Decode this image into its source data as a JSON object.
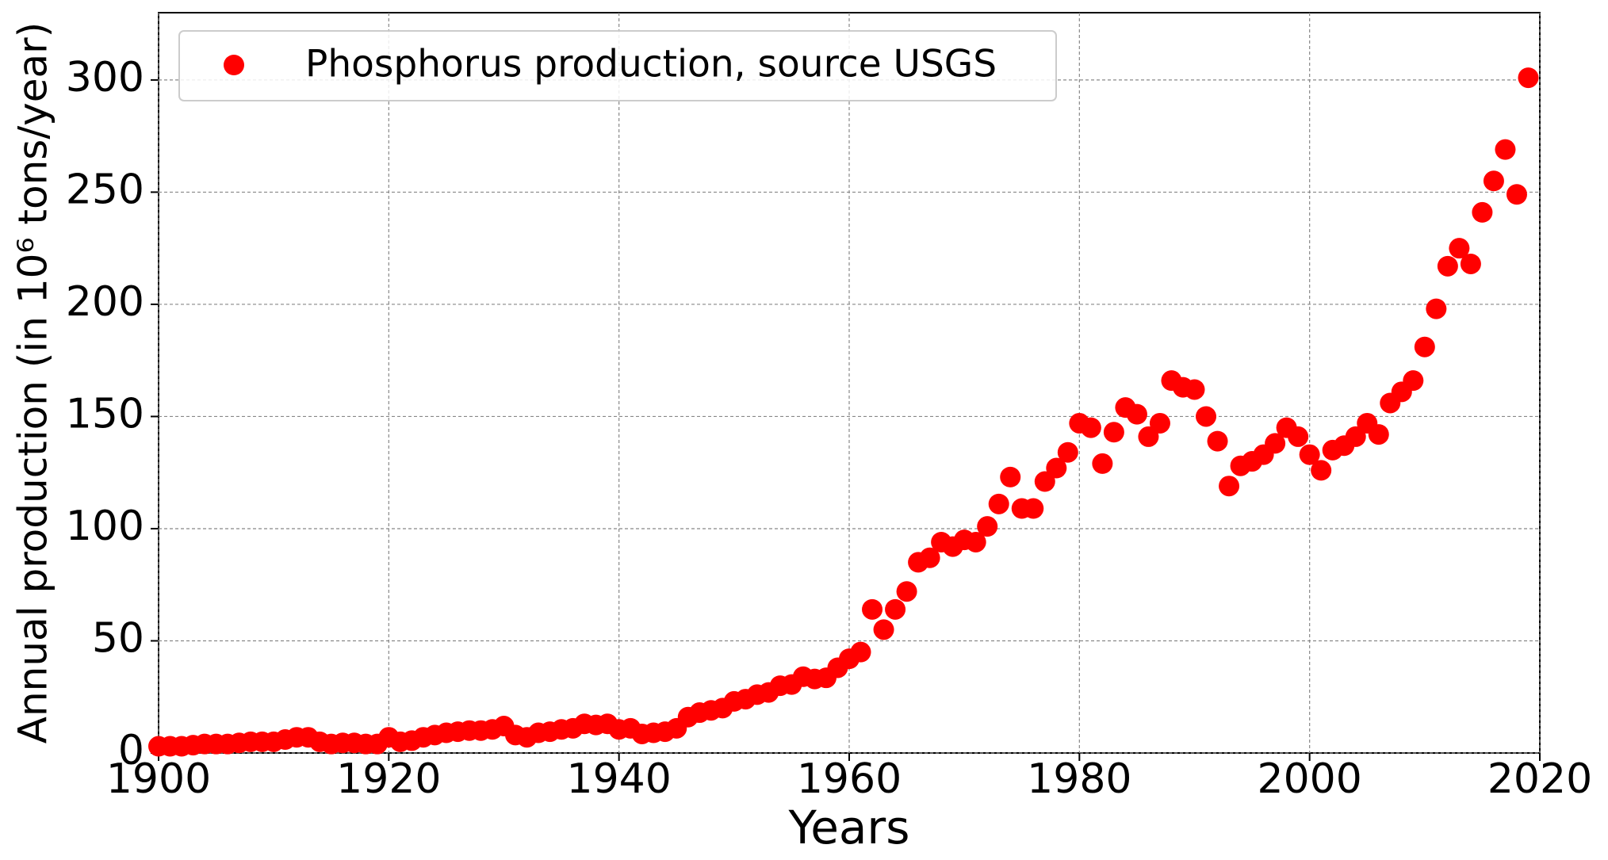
{
  "chart_data": {
    "type": "scatter",
    "x_label": "Years",
    "y_label": "Annual production (in 10⁶ tons/year)",
    "x": [
      1900,
      1901,
      1902,
      1903,
      1904,
      1905,
      1906,
      1907,
      1908,
      1909,
      1910,
      1911,
      1912,
      1913,
      1914,
      1915,
      1916,
      1917,
      1918,
      1919,
      1920,
      1921,
      1922,
      1923,
      1924,
      1925,
      1926,
      1927,
      1928,
      1929,
      1930,
      1931,
      1932,
      1933,
      1934,
      1935,
      1936,
      1937,
      1938,
      1939,
      1940,
      1941,
      1942,
      1943,
      1944,
      1945,
      1946,
      1947,
      1948,
      1949,
      1950,
      1951,
      1952,
      1953,
      1954,
      1955,
      1956,
      1957,
      1958,
      1959,
      1960,
      1961,
      1962,
      1963,
      1964,
      1965,
      1966,
      1967,
      1968,
      1969,
      1970,
      1971,
      1972,
      1973,
      1974,
      1975,
      1976,
      1977,
      1978,
      1979,
      1980,
      1981,
      1982,
      1983,
      1984,
      1985,
      1986,
      1987,
      1988,
      1989,
      1990,
      1991,
      1992,
      1993,
      1994,
      1995,
      1996,
      1997,
      1998,
      1999,
      2000,
      2001,
      2002,
      2003,
      2004,
      2005,
      2006,
      2007,
      2008,
      2009,
      2010,
      2011,
      2012,
      2013,
      2014,
      2015,
      2016,
      2017,
      2018,
      2019
    ],
    "series": [
      {
        "name": "Phosphorus production, source USGS",
        "color": "#ff0000",
        "values": [
          3,
          3,
          3,
          3.5,
          4,
          4,
          4,
          4.5,
          5,
          5,
          5,
          6,
          7,
          7,
          5,
          4,
          4.5,
          4.5,
          4,
          4,
          7,
          5,
          5.5,
          7,
          8,
          9,
          9.5,
          10,
          10,
          10.5,
          12,
          8,
          7,
          9,
          9.5,
          10.5,
          11,
          13,
          12.5,
          13,
          10.5,
          11,
          8.5,
          9,
          9.5,
          11,
          16,
          18,
          19,
          20,
          23,
          24,
          26,
          27,
          30,
          30.5,
          34,
          33,
          33.5,
          38,
          42,
          45,
          64,
          55,
          64,
          72,
          85,
          87,
          94,
          92,
          95,
          94,
          101,
          111,
          123,
          109,
          109,
          121,
          127,
          134,
          147,
          145,
          129,
          143,
          154,
          151,
          141,
          147,
          166,
          163,
          162,
          150,
          139,
          119,
          128,
          130,
          133,
          138,
          145,
          141,
          133,
          126,
          135,
          137,
          141,
          147,
          142,
          156,
          161,
          166,
          181,
          198,
          217,
          225,
          218,
          241,
          255,
          269,
          249,
          301
        ]
      }
    ],
    "xlim": [
      1900,
      2020
    ],
    "xticks": [
      1900,
      1920,
      1940,
      1960,
      1980,
      2000,
      2020
    ],
    "ylim": [
      0,
      330
    ],
    "yticks": [
      0,
      50,
      100,
      150,
      200,
      250,
      300
    ],
    "grid": true,
    "legend": "upper left"
  }
}
